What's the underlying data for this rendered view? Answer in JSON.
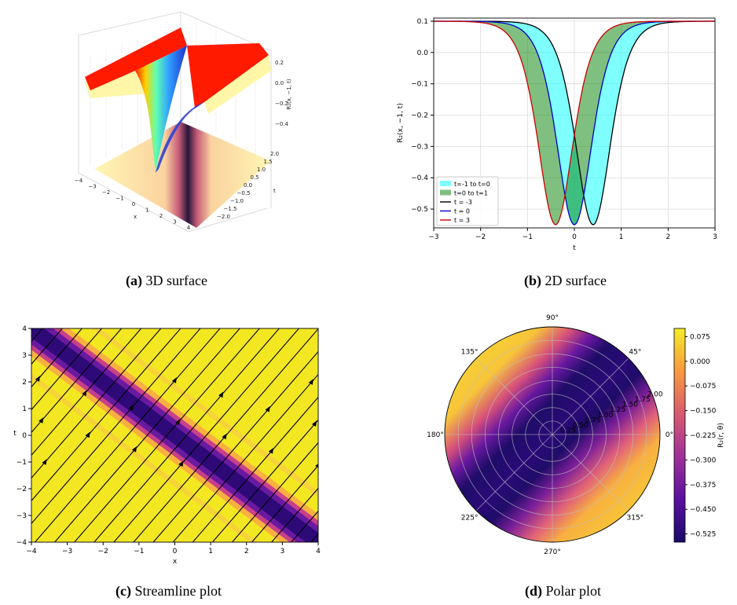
{
  "captions": {
    "a": {
      "tag": "(a)",
      "text": "3D surface"
    },
    "b": {
      "tag": "(b)",
      "text": "2D surface"
    },
    "c": {
      "tag": "(c)",
      "text": "Streamline plot"
    },
    "d": {
      "tag": "(d)",
      "text": "Polar plot"
    }
  },
  "chart_data": [
    {
      "id": "a",
      "type": "surface",
      "xlabel": "x",
      "ylabel": "t",
      "zlabel": "R₂(x, −1, t)",
      "x_ticks": [
        "−4",
        "−3",
        "−2",
        "−1",
        "0",
        "1",
        "2",
        "3",
        "4"
      ],
      "t_ticks": [
        "−2.0",
        "−1.5",
        "−1.0",
        "−0.5",
        "0.0",
        "0.5",
        "1.0",
        "1.5",
        "2.0"
      ],
      "z_ticks": [
        "0.2",
        "0.0",
        "−0.2",
        "−0.4"
      ],
      "colors": {
        "top": "#ff1a00",
        "band": "#fff6a8"
      }
    },
    {
      "id": "b",
      "type": "line",
      "xlabel": "t",
      "ylabel": "R₂(x, −1, t)",
      "xlim": [
        -3,
        3
      ],
      "ylim": [
        -0.56,
        0.11
      ],
      "x_ticks": [
        -3,
        -2,
        -1,
        0,
        1,
        2,
        3
      ],
      "y_ticks": [
        0.1,
        0.0,
        -0.1,
        -0.2,
        -0.3,
        -0.4,
        -0.5
      ],
      "grid": true,
      "legend": "bottom-left",
      "baseline": 0.1,
      "depth": -0.65,
      "series": [
        {
          "name": "t = -3",
          "center": 0.4,
          "color": "#000000"
        },
        {
          "name": "t = 0",
          "center": 0.0,
          "color": "#0000cc"
        },
        {
          "name": "t = 3",
          "center": -0.4,
          "color": "#cc0000"
        }
      ],
      "fills": [
        {
          "name": "t=-1 to t=0",
          "color": "#00ffff",
          "opacity": 0.5
        },
        {
          "name": "t=0 to t=1",
          "color": "#008000",
          "opacity": 0.5
        }
      ]
    },
    {
      "id": "c",
      "type": "heatmap",
      "xlabel": "x",
      "ylabel": "t",
      "xlim": [
        -4,
        4
      ],
      "ylim": [
        -4,
        4
      ],
      "x_ticks": [
        -4,
        -3,
        -2,
        -1,
        0,
        1,
        2,
        3,
        4
      ],
      "y_ticks": [
        -4,
        -3,
        -2,
        -1,
        0,
        1,
        2,
        3,
        4
      ],
      "band": "x + t",
      "colors": {
        "bg": "#f3e722",
        "orange": "#f8b040",
        "magenta": "#c8408a",
        "purple": "#6a1aa0",
        "dark": "#2e0a78"
      }
    },
    {
      "id": "d",
      "type": "heatmap",
      "coordinates": "polar",
      "angle_ticks": [
        "0°",
        "45°",
        "90°",
        "135°",
        "180°",
        "225°",
        "270°",
        "315°"
      ],
      "r_ticks": [
        "0.25",
        "0.50",
        "0.75",
        "1.00",
        "1.25",
        "1.50",
        "1.75",
        "2.00"
      ],
      "colorbar_label": "R₂(r, θ)",
      "colorbar_ticks": [
        0.075,
        0.0,
        -0.075,
        -0.15,
        -0.225,
        -0.3,
        -0.375,
        -0.45,
        -0.525
      ],
      "colorbar_tick_labels": [
        "0.075",
        "0.000",
        "−0.075",
        "−0.150",
        "−0.225",
        "−0.300",
        "−0.375",
        "−0.450",
        "−0.525"
      ],
      "range": [
        -0.55,
        0.1
      ]
    }
  ]
}
